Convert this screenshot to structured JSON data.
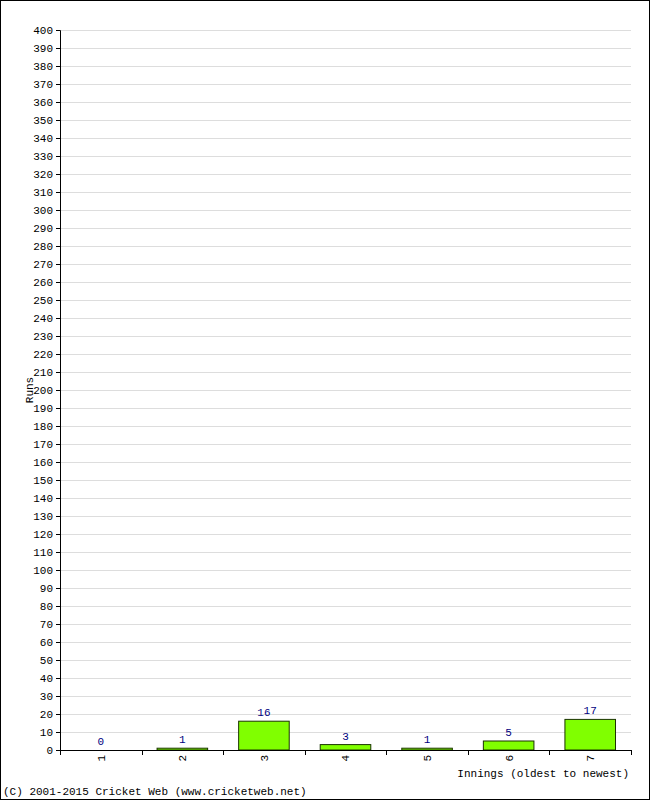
{
  "chart_data": {
    "type": "bar",
    "categories": [
      "1",
      "2",
      "3",
      "4",
      "5",
      "6",
      "7"
    ],
    "values": [
      0,
      1,
      16,
      3,
      1,
      5,
      17
    ],
    "color": "#80ff00",
    "ylim": [
      0,
      400
    ],
    "yticks": [
      0,
      10,
      20,
      30,
      40,
      50,
      60,
      70,
      80,
      90,
      100,
      110,
      120,
      130,
      140,
      150,
      160,
      170,
      180,
      190,
      200,
      210,
      220,
      230,
      240,
      250,
      260,
      270,
      280,
      290,
      300,
      310,
      320,
      330,
      340,
      350,
      360,
      370,
      380,
      390,
      400
    ],
    "grid": true,
    "data_labels": true,
    "x_label": "Innings (oldest to newest)",
    "y_label": "Runs",
    "annotations": [
      "(C) 2001-2015 Cricket Web (www.cricketweb.net)"
    ]
  }
}
